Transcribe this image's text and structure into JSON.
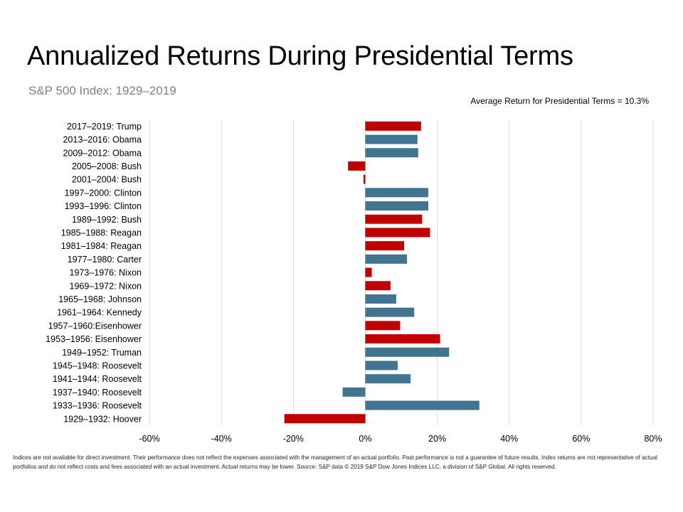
{
  "title": "Annualized Returns During Presidential Terms",
  "subtitle": "S&P 500 Index: 1929–2019",
  "annotation": "Average Return for Presidential Terms = 10.3%",
  "footnote": "Indices are not available for direct investment. Their performance does not reflect the expenses associated with the management of an actual portfolio. Past performance is not a guarantee of future results. Index returns are not representative of actual portfolios and do not reflect costs and fees associated with an actual investment. Actual returns may be lower. Source: S&P data © 2019 S&P Dow Jones Indices LLC, a division of S&P Global. All rights reserved.",
  "colors": {
    "republican": "#c00000",
    "democrat": "#41758f",
    "grid": "#d9d9d9"
  },
  "chart_data": {
    "type": "bar",
    "orientation": "horizontal",
    "xlim": [
      -60,
      80
    ],
    "x_ticks": [
      -60,
      -40,
      -20,
      0,
      20,
      40,
      60,
      80
    ],
    "x_tick_labels": [
      "-60%",
      "-40%",
      "-20%",
      "0%",
      "20%",
      "40%",
      "60%",
      "80%"
    ],
    "grid": true,
    "categories": [
      "2017–2019: Trump",
      "2013–2016: Obama",
      "2009–2012: Obama",
      "2005–2008: Bush",
      "2001–2004: Bush",
      "1997–2000: Clinton",
      "1993–1996: Clinton",
      "1989–1992: Bush",
      "1985–1988: Reagan",
      "1981–1984: Reagan",
      "1977–1980: Carter",
      "1973–1976: Nixon",
      "1969–1972: Nixon",
      "1965–1968: Johnson",
      "1961–1964: Kennedy",
      "1957–1960:Eisenhower",
      "1953–1956: Eisenhower",
      "1949–1952: Truman",
      "1945–1948: Roosevelt",
      "1941–1944: Roosevelt",
      "1937–1940: Roosevelt",
      "1933–1936: Roosevelt",
      "1929–1932: Hoover"
    ],
    "values": [
      15.5,
      14.5,
      14.7,
      -4.8,
      -0.5,
      17.5,
      17.5,
      15.8,
      18.0,
      10.8,
      11.6,
      1.8,
      7.0,
      8.6,
      13.6,
      9.7,
      20.8,
      23.3,
      9.0,
      12.6,
      -6.3,
      31.7,
      -22.5
    ],
    "party": [
      "R",
      "D",
      "D",
      "R",
      "R",
      "D",
      "D",
      "R",
      "R",
      "R",
      "D",
      "R",
      "R",
      "D",
      "D",
      "R",
      "R",
      "D",
      "D",
      "D",
      "D",
      "D",
      "R"
    ]
  }
}
